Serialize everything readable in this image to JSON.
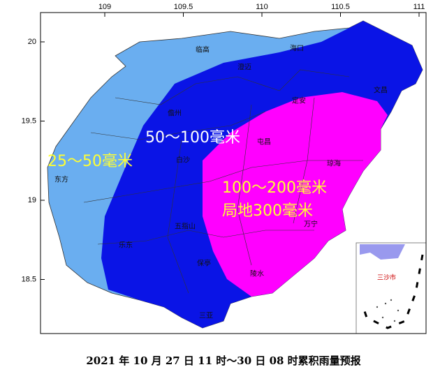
{
  "axes": {
    "longitude": [
      109,
      109.5,
      110,
      110.5,
      111
    ],
    "latitude": [
      20,
      19.5,
      19,
      18.5
    ]
  },
  "rain_labels": [
    "25～50毫米",
    "50～100毫米",
    "100～200毫米",
    "局地300毫米"
  ],
  "places": [
    "临高",
    "海口",
    "澄迈",
    "文昌",
    "定安",
    "儋州",
    "屯昌",
    "白沙",
    "琼海",
    "东方",
    "五指山",
    "乐东",
    "万宁",
    "保亭",
    "陵水",
    "三亚"
  ],
  "inset": {
    "label": "三沙市"
  },
  "caption": "2021 年 10 月 27 日 11 时～30 日 08 时累积雨量预报"
}
